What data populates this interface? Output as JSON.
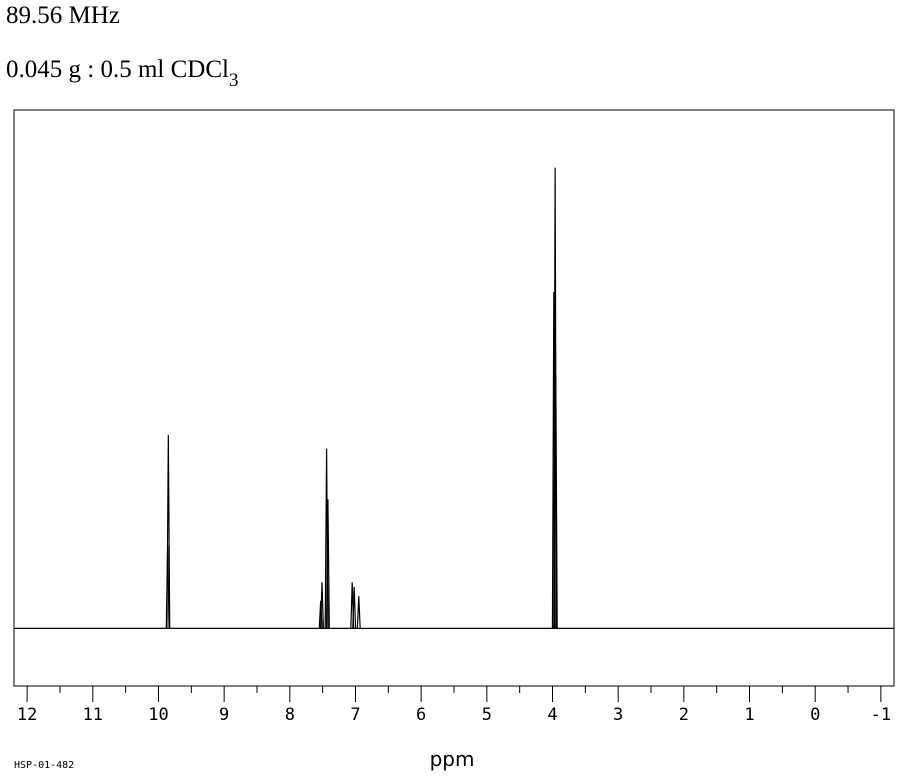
{
  "header": {
    "frequency": "89.56 MHz",
    "sample_prefix": "0.045 g : 0.5 ml CDCl",
    "sample_subscript": "3"
  },
  "footer_code": "HSP-01-482",
  "chart_data": {
    "type": "line",
    "xlabel": "ppm",
    "xlim": [
      12.2,
      -1.2
    ],
    "x_reversed": true,
    "ylim": [
      -0.125,
      1.125
    ],
    "x_ticks": [
      12,
      11,
      10,
      9,
      8,
      7,
      6,
      5,
      4,
      3,
      2,
      1,
      0,
      -1
    ],
    "x_tick_labels": [
      "12",
      "11",
      "10",
      "9",
      "8",
      "7",
      "6",
      "5",
      "4",
      "3",
      "2",
      "1",
      "0",
      "-1"
    ],
    "grid": false,
    "peaks": [
      {
        "x": 9.86,
        "y": 0.18
      },
      {
        "x": 9.85,
        "y": 0.42
      },
      {
        "x": 7.53,
        "y": 0.06
      },
      {
        "x": 7.51,
        "y": 0.1
      },
      {
        "x": 7.44,
        "y": 0.39
      },
      {
        "x": 7.42,
        "y": 0.28
      },
      {
        "x": 7.05,
        "y": 0.1
      },
      {
        "x": 7.02,
        "y": 0.09
      },
      {
        "x": 6.95,
        "y": 0.07
      },
      {
        "x": 3.98,
        "y": 0.73
      },
      {
        "x": 3.96,
        "y": 1.0
      },
      {
        "x": 3.95,
        "y": 0.55
      }
    ]
  }
}
